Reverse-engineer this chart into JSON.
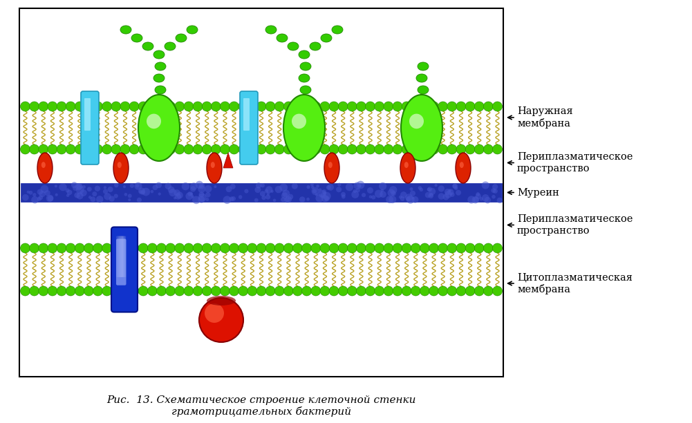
{
  "title": "Рис.  13. Схематическое строение клеточной стенки\nграмотрицательных бактерий",
  "labels": {
    "outer_membrane": "Наружная\nмембрана",
    "periplasm1": "Периплазматическое\nпространство",
    "murein": "Муреин",
    "periplasm2": "Периплазматическое\nпространство",
    "cytoplasm_membrane": "Цитоплазматическая\nмембрана"
  },
  "colors": {
    "background": "#ffffff",
    "lipid_head": "#44cc00",
    "lipid_tail": "#b8a020",
    "cyan_protein": "#44ccee",
    "green_protein": "#44ee00",
    "murein_layer": "#2233aa",
    "red_protein": "#dd1100",
    "blue_protein": "#1133cc",
    "lps_bead": "#33cc00"
  },
  "figsize": [
    10.01,
    6.12
  ],
  "dpi": 100
}
